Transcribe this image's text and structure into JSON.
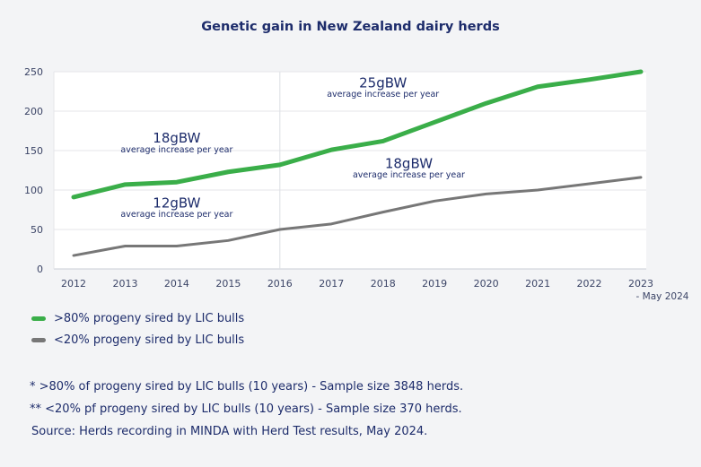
{
  "chart_data": {
    "type": "line",
    "title": "Genetic gain in New Zealand dairy herds",
    "xlabel": "",
    "ylabel": "",
    "x": [
      "2012",
      "2013",
      "2014",
      "2015",
      "2016",
      "2017",
      "2018",
      "2019",
      "2020",
      "2021",
      "2022",
      "2023"
    ],
    "x_tick_sublabel": "- May 2024",
    "ylim": [
      0,
      250
    ],
    "yticks": [
      0,
      50,
      100,
      150,
      200,
      250
    ],
    "grid": true,
    "series": [
      {
        "name": ">80% progeny sired by LIC bulls",
        "color": "#3aae49",
        "values": [
          91,
          107,
          110,
          123,
          132,
          151,
          162,
          186,
          210,
          231,
          240,
          250
        ]
      },
      {
        "name": "<20% progeny sired by LIC bulls",
        "color": "#777777",
        "values": [
          17,
          29,
          29,
          36,
          50,
          57,
          72,
          86,
          95,
          100,
          108,
          116
        ]
      }
    ],
    "divider_at": "2016",
    "annotations": [
      {
        "value": "18gBW",
        "subtitle": "average increase per year",
        "anchor_x": "2014",
        "anchor_y": 160,
        "sub_y": 148
      },
      {
        "value": "12gBW",
        "subtitle": "average increase per year",
        "anchor_x": "2014",
        "anchor_y": 78,
        "sub_y": 66
      },
      {
        "value": "25gBW",
        "subtitle": "average increase per year",
        "anchor_x": "2018",
        "anchor_y": 230,
        "sub_y": 218
      },
      {
        "value": "18gBW",
        "subtitle": "average increase per year",
        "anchor_x": "2018.5",
        "anchor_y": 128,
        "sub_y": 116
      }
    ],
    "legend_position": "bottom-left"
  },
  "footnotes": [
    "* >80% of progeny sired by LIC bulls (10 years) - Sample size 3848 herds.",
    "** <20% pf progeny sired by LIC bulls (10 years) - Sample size 370 herds.",
    "Source: Herds recording in MINDA with Herd Test results, May 2024."
  ]
}
